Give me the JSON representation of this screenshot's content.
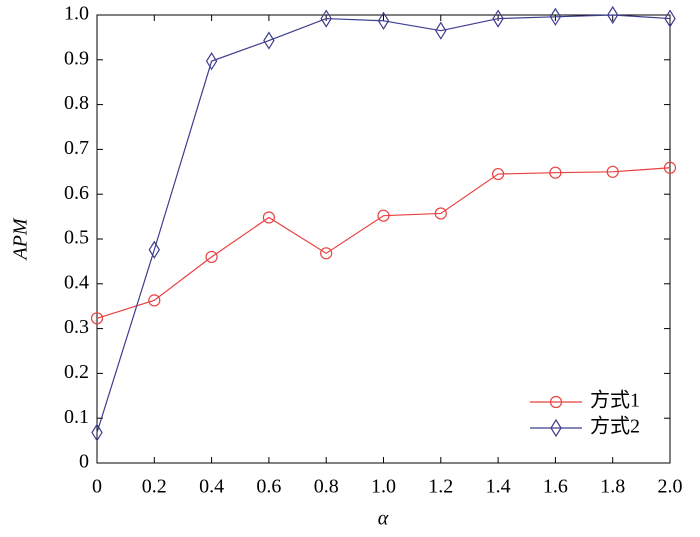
{
  "chart_data": {
    "type": "line",
    "x_label": "α",
    "y_label": "APM",
    "x": [
      0,
      0.2,
      0.4,
      0.6,
      0.8,
      1,
      1.2,
      1.4,
      1.6,
      1.8,
      2
    ],
    "series": [
      {
        "name": "方式1",
        "color": "#e8413f",
        "marker": "circle",
        "values": [
          0.323,
          0.363,
          0.46,
          0.548,
          0.468,
          0.552,
          0.557,
          0.645,
          0.648,
          0.65,
          0.659
        ]
      },
      {
        "name": "方式2",
        "color": "#3d3d8f",
        "marker": "diamond",
        "values": [
          0.068,
          0.476,
          0.897,
          0.943,
          0.992,
          0.987,
          0.965,
          0.992,
          0.996,
          1,
          0.992
        ]
      }
    ],
    "xlim": [
      0,
      2
    ],
    "ylim": [
      0,
      1
    ],
    "xticks": [
      0,
      0.2,
      0.4,
      0.6,
      0.8,
      {
        "value": 1,
        "label": "1.0"
      },
      1.2,
      1.4,
      1.6,
      1.8,
      {
        "value": 2,
        "label": "2.0"
      }
    ],
    "yticks": [
      0,
      0.1,
      0.2,
      0.3,
      0.4,
      0.5,
      0.6,
      0.7,
      0.8,
      0.9,
      {
        "value": 1,
        "label": "1.0"
      }
    ],
    "legend": "lower right"
  }
}
